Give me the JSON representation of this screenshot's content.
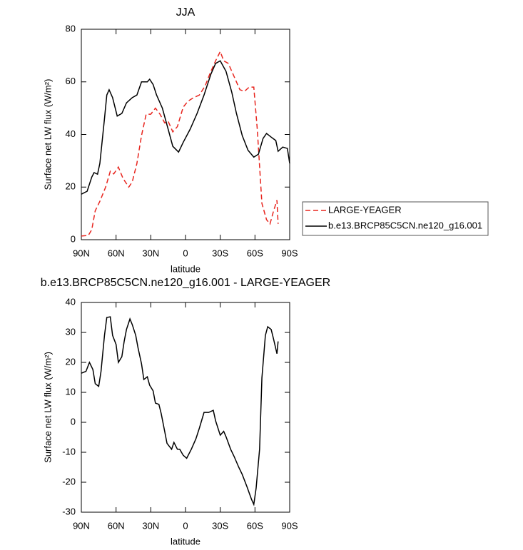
{
  "chart_data": [
    {
      "type": "line",
      "title": "JJA",
      "x_label": "latitude",
      "y_label": "Surface net LW flux (W/m²)",
      "xlim": [
        90,
        -90
      ],
      "ylim": [
        0,
        80
      ],
      "xticks": [
        {
          "value": 90,
          "label": "90N"
        },
        {
          "value": 60,
          "label": "60N"
        },
        {
          "value": 30,
          "label": "30N"
        },
        0,
        {
          "value": -30,
          "label": "30S"
        },
        {
          "value": -60,
          "label": "60S"
        },
        {
          "value": -90,
          "label": "90S"
        }
      ],
      "yticks": [
        0,
        20,
        40,
        60,
        80
      ],
      "legend": "right",
      "series": [
        {
          "name": "LARGE-YEAGER",
          "color": "#e8261f",
          "line_style": "dashed",
          "x": [
            90,
            84,
            81,
            78,
            74,
            69,
            65,
            62,
            58,
            54,
            49,
            46,
            42,
            38,
            34,
            30,
            26,
            22,
            18,
            15,
            11,
            7,
            2,
            -2,
            -7,
            -12,
            -17,
            -21,
            -26,
            -30,
            -33,
            -37,
            -42,
            -47,
            -51,
            -55,
            -59,
            -62,
            -66,
            -70,
            -73,
            -76,
            -79,
            -80
          ],
          "values": [
            1.4,
            1.6,
            3.8,
            11,
            14.6,
            20,
            26,
            25,
            27.6,
            23.3,
            20,
            22,
            29,
            39.6,
            47.7,
            47.7,
            50,
            47.7,
            44.4,
            45,
            41,
            43,
            50.4,
            52.6,
            54,
            55,
            58.5,
            63,
            68,
            71.5,
            68,
            67,
            62,
            57,
            56.4,
            58,
            58,
            42,
            13.8,
            7.6,
            6,
            10.8,
            15,
            6
          ]
        },
        {
          "name": "b.e13.BRCP85C5CN.ne120_g16.001",
          "color": "#000000",
          "line_style": "solid",
          "x": [
            90,
            85,
            81,
            79,
            76,
            74,
            70,
            68,
            66,
            63,
            59,
            55,
            51,
            46,
            42,
            38,
            33,
            31,
            28,
            25,
            20,
            15,
            11,
            6,
            2,
            -4,
            -10,
            -16,
            -22,
            -26,
            -30,
            -35,
            -40,
            -44,
            -49,
            -54,
            -59,
            -63,
            -67,
            -70,
            -74,
            -78,
            -80,
            -84,
            -88,
            -90
          ],
          "values": [
            17.3,
            18.4,
            23.8,
            25.5,
            24.9,
            29,
            46,
            55,
            57,
            54,
            47,
            48,
            52,
            54,
            55,
            60,
            60,
            61,
            59,
            55,
            50,
            42,
            35.5,
            33.3,
            37,
            42,
            48,
            55,
            63,
            67,
            68,
            64,
            56,
            48,
            39.6,
            34,
            31.4,
            32.5,
            38.5,
            40.4,
            39,
            37.7,
            33.6,
            35.2,
            34.7,
            29
          ]
        }
      ]
    },
    {
      "type": "line",
      "title": "b.e13.BRCP85C5CN.ne120_g16.001 - LARGE-YEAGER",
      "x_label": "latitude",
      "y_label": "Surface net LW flux (W/m²)",
      "xlim": [
        90,
        -90
      ],
      "ylim": [
        -30,
        40
      ],
      "xticks": [
        {
          "value": 90,
          "label": "90N"
        },
        {
          "value": 60,
          "label": "60N"
        },
        {
          "value": 30,
          "label": "30N"
        },
        0,
        {
          "value": -30,
          "label": "30S"
        },
        {
          "value": -60,
          "label": "60S"
        },
        {
          "value": -90,
          "label": "90S"
        }
      ],
      "yticks": [
        -30,
        -20,
        -10,
        0,
        10,
        20,
        30,
        40
      ],
      "series": [
        {
          "color": "#000000",
          "line_style": "solid",
          "x": [
            90,
            86,
            83,
            80,
            78,
            75,
            73,
            70,
            68,
            65,
            63,
            60,
            58,
            55,
            53,
            51,
            48,
            46,
            43,
            41,
            38,
            36,
            33,
            31,
            28,
            26,
            23,
            21,
            18,
            16,
            12,
            10,
            7,
            5,
            2,
            -1,
            -5,
            -9,
            -12,
            -16,
            -20,
            -24,
            -26,
            -30,
            -33,
            -35,
            -39,
            -42,
            -46,
            -49,
            -53,
            -57,
            -59,
            -61,
            -64,
            -66,
            -69,
            -71,
            -74,
            -76,
            -79,
            -80
          ],
          "values": [
            16.4,
            17,
            20,
            17.6,
            12.9,
            12,
            17,
            29,
            35,
            35.2,
            29,
            26,
            20,
            21.9,
            27,
            31,
            34.5,
            32.6,
            29,
            24.8,
            19.5,
            14.3,
            15.2,
            12.4,
            10.5,
            6.4,
            6,
            2.9,
            -3,
            -7,
            -9,
            -6.7,
            -9,
            -9,
            -11,
            -12,
            -9,
            -5.5,
            -1.9,
            3.3,
            3.3,
            4,
            0.5,
            -4.3,
            -3,
            -4.8,
            -9,
            -11.4,
            -15,
            -17.4,
            -21.4,
            -25.7,
            -27.4,
            -22,
            -9,
            14.8,
            29,
            31.9,
            31,
            27.9,
            22.9,
            27
          ]
        }
      ]
    }
  ]
}
